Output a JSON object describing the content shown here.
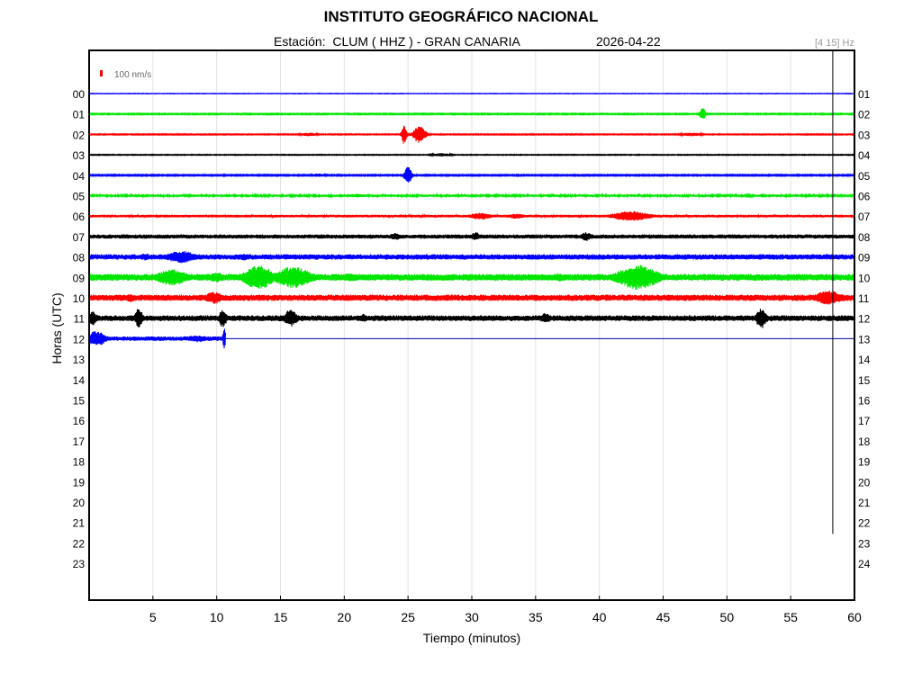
{
  "header": {
    "title": "INSTITUTO GEOGRÁFICO NACIONAL",
    "station_text": "Estación:  CLUM ( HHZ ) - GRAN CANARIA",
    "date": "2026-04-22",
    "filter": "[4 15] Hz"
  },
  "chart_data": {
    "type": "line",
    "title": "INSTITUTO GEOGRÁFICO NACIONAL",
    "xlabel": "Tiempo (minutos)",
    "ylabel": "Horas (UTC)",
    "xlim": [
      0,
      60
    ],
    "x_ticks": [
      "5",
      "10",
      "15",
      "20",
      "25",
      "30",
      "35",
      "40",
      "45",
      "50",
      "55",
      "60"
    ],
    "left_hour_labels": [
      "00",
      "01",
      "02",
      "03",
      "04",
      "05",
      "06",
      "07",
      "08",
      "09",
      "10",
      "11",
      "12",
      "13",
      "14",
      "15",
      "16",
      "17",
      "18",
      "19",
      "20",
      "21",
      "22",
      "23"
    ],
    "right_hour_labels": [
      "01",
      "02",
      "03",
      "04",
      "05",
      "06",
      "07",
      "08",
      "09",
      "10",
      "11",
      "12",
      "13",
      "14",
      "15",
      "16",
      "17",
      "18",
      "19",
      "20",
      "21",
      "22",
      "23",
      "24"
    ],
    "scale_label": "100 nm/s",
    "grid": true,
    "colors": [
      "#0000ff",
      "#00e600",
      "#ff0000",
      "#000000"
    ],
    "current_time_marker": 58.3,
    "series": [
      {
        "hour": "00",
        "color": "#0000ff",
        "noise": 0.3,
        "end": 60,
        "events": []
      },
      {
        "hour": "01",
        "color": "#00e600",
        "noise": 0.7,
        "end": 60,
        "events": [
          {
            "t": 48.1,
            "amp": 7,
            "dur": 0.4
          }
        ]
      },
      {
        "hour": "02",
        "color": "#ff0000",
        "noise": 0.6,
        "end": 60,
        "events": [
          {
            "t": 24.7,
            "amp": 12,
            "dur": 0.3
          },
          {
            "t": 25.9,
            "amp": 10,
            "dur": 0.8
          },
          {
            "t": 17.2,
            "amp": 2,
            "dur": 1.2
          },
          {
            "t": 47.2,
            "amp": 2,
            "dur": 1.5
          }
        ]
      },
      {
        "hour": "03",
        "color": "#000000",
        "noise": 0.5,
        "end": 60,
        "events": [
          {
            "t": 27.6,
            "amp": 2,
            "dur": 1.4
          }
        ]
      },
      {
        "hour": "04",
        "color": "#0000ff",
        "noise": 0.8,
        "end": 60,
        "events": [
          {
            "t": 25.0,
            "amp": 10,
            "dur": 0.5
          },
          {
            "t": 18.0,
            "amp": 2,
            "dur": 1.0
          }
        ]
      },
      {
        "hour": "05",
        "color": "#00e600",
        "noise": 1.3,
        "end": 60,
        "events": [
          {
            "t": 21.0,
            "amp": 2,
            "dur": 1.5
          }
        ]
      },
      {
        "hour": "06",
        "color": "#ff0000",
        "noise": 1.5,
        "end": 60,
        "events": [
          {
            "t": 30.7,
            "amp": 4,
            "dur": 1.5
          },
          {
            "t": 42.5,
            "amp": 6,
            "dur": 2.5
          },
          {
            "t": 33.5,
            "amp": 3,
            "dur": 1.2
          }
        ]
      },
      {
        "hour": "07",
        "color": "#000000",
        "noise": 2.3,
        "end": 60,
        "events": [
          {
            "t": 30.3,
            "amp": 5,
            "dur": 0.6
          },
          {
            "t": 39.0,
            "amp": 5,
            "dur": 0.8
          },
          {
            "t": 24.0,
            "amp": 4,
            "dur": 0.8
          }
        ]
      },
      {
        "hour": "08",
        "color": "#0000ff",
        "noise": 3.0,
        "end": 60,
        "events": [
          {
            "t": 7.2,
            "amp": 7,
            "dur": 2.0
          },
          {
            "t": 4.4,
            "amp": 4,
            "dur": 0.8
          },
          {
            "t": 12.2,
            "amp": 4,
            "dur": 1.0
          }
        ]
      },
      {
        "hour": "09",
        "color": "#00e600",
        "noise": 3.8,
        "end": 60,
        "events": [
          {
            "t": 6.5,
            "amp": 9,
            "dur": 2.2
          },
          {
            "t": 13.3,
            "amp": 14,
            "dur": 2.0
          },
          {
            "t": 16.0,
            "amp": 12,
            "dur": 2.5
          },
          {
            "t": 43.0,
            "amp": 14,
            "dur": 2.8
          },
          {
            "t": 10.0,
            "amp": 6,
            "dur": 1.0
          },
          {
            "t": 20.5,
            "amp": 5,
            "dur": 1.2
          },
          {
            "t": 36.8,
            "amp": 5,
            "dur": 1.0
          }
        ]
      },
      {
        "hour": "10",
        "color": "#ff0000",
        "noise": 3.5,
        "end": 60,
        "events": [
          {
            "t": 9.8,
            "amp": 7,
            "dur": 1.2
          },
          {
            "t": 58.0,
            "amp": 8,
            "dur": 2.0
          },
          {
            "t": 3.2,
            "amp": 5,
            "dur": 0.8
          }
        ]
      },
      {
        "hour": "11",
        "color": "#000000",
        "noise": 3.2,
        "end": 60,
        "events": [
          {
            "t": 3.9,
            "amp": 12,
            "dur": 0.5
          },
          {
            "t": 10.5,
            "amp": 11,
            "dur": 0.5
          },
          {
            "t": 15.8,
            "amp": 10,
            "dur": 0.9
          },
          {
            "t": 52.7,
            "amp": 12,
            "dur": 0.7
          },
          {
            "t": 21.5,
            "amp": 5,
            "dur": 0.6
          },
          {
            "t": 35.8,
            "amp": 6,
            "dur": 0.7
          },
          {
            "t": 0.3,
            "amp": 8,
            "dur": 0.6
          }
        ]
      },
      {
        "hour": "12",
        "color": "#0000ff",
        "noise": 2.5,
        "end": 10.7,
        "events": [
          {
            "t": 0.6,
            "amp": 9,
            "dur": 1.2
          },
          {
            "t": 8.5,
            "amp": 4,
            "dur": 1.5
          },
          {
            "t": 10.6,
            "amp": 12,
            "dur": 0.2
          }
        ]
      }
    ]
  }
}
